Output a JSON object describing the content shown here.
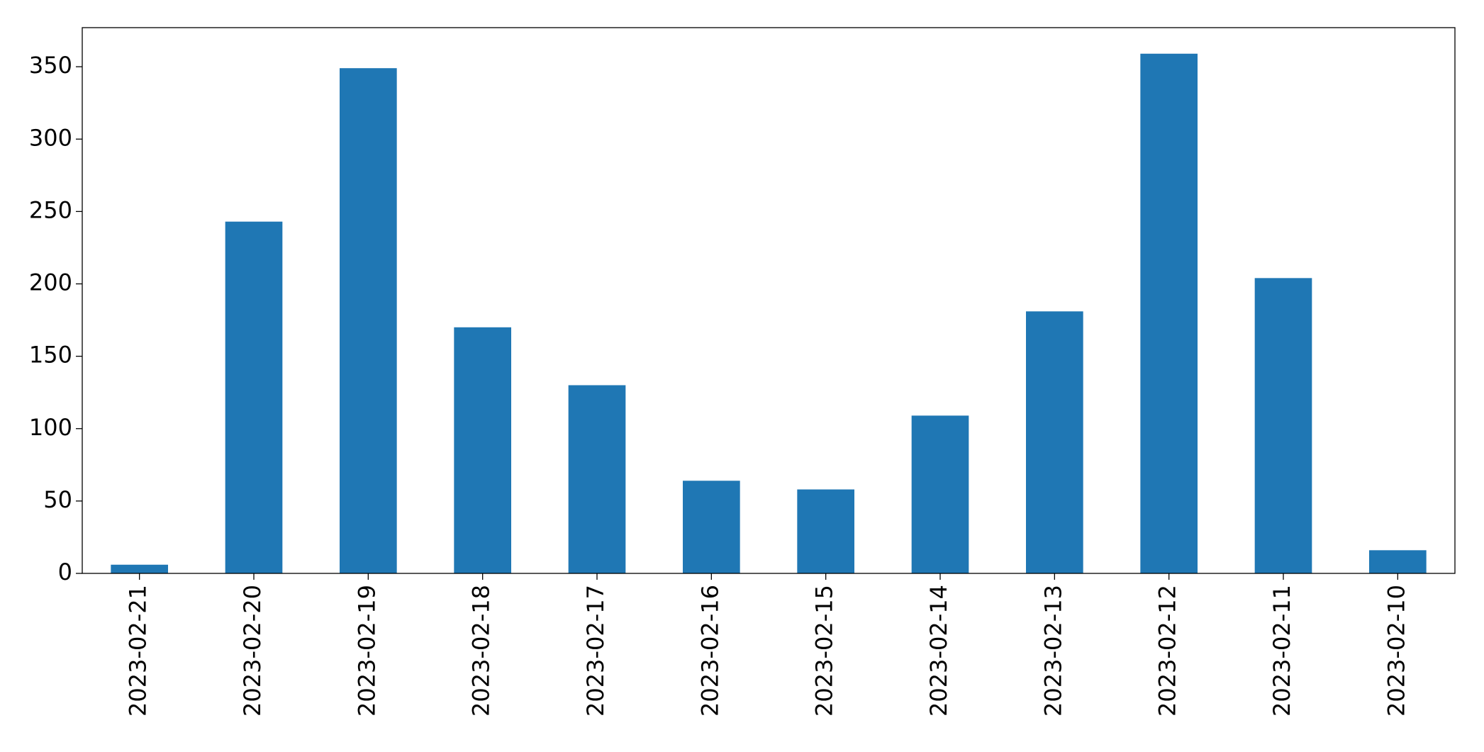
{
  "chart_data": {
    "type": "bar",
    "categories": [
      "2023-02-21",
      "2023-02-20",
      "2023-02-19",
      "2023-02-18",
      "2023-02-17",
      "2023-02-16",
      "2023-02-15",
      "2023-02-14",
      "2023-02-13",
      "2023-02-12",
      "2023-02-11",
      "2023-02-10"
    ],
    "values": [
      6,
      243,
      349,
      170,
      130,
      64,
      58,
      109,
      181,
      359,
      204,
      16
    ],
    "color": "#1f77b4",
    "ylim": [
      0,
      377
    ],
    "yticks": [
      0,
      50,
      100,
      150,
      200,
      250,
      300,
      350
    ],
    "grid": false
  }
}
